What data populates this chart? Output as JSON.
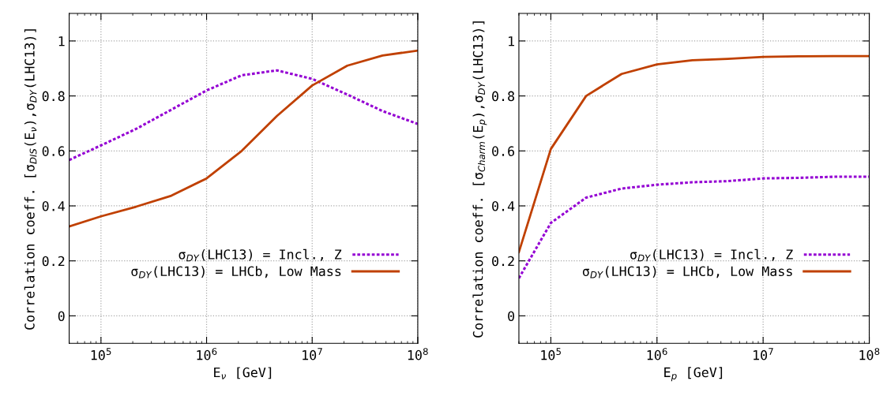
{
  "chart_data": [
    {
      "type": "line",
      "xlabel": "E$_{ν}$ [GeV]",
      "ylabel": "Correlation coeff. [σ$_{DIS}$(E$_{ν}$),σ$_{DY}$(LHC13)]",
      "log": "x",
      "grid": true,
      "legend": "bottom right",
      "xlim": [
        50000,
        100000000
      ],
      "ylim": [
        -0.1,
        1.1
      ],
      "xticks": [
        {
          "value": 100000,
          "label": "10$^{5}$"
        },
        {
          "value": 1000000,
          "label": "10$^{6}$"
        },
        {
          "value": 10000000,
          "label": "10$^{7}$"
        },
        {
          "value": 100000000,
          "label": "10$^{8}$"
        }
      ],
      "yticks": [
        0,
        0.2,
        0.4,
        0.6,
        0.8,
        1
      ],
      "x": [
        50000,
        100000,
        215000,
        464000,
        1000000,
        2150000,
        4640000,
        10000000,
        21500000,
        46400000,
        100000000
      ],
      "series": [
        {
          "name": "σ$_{DY}$(LHC13) = Incl., Z",
          "color": "#9400d3",
          "line_style": "dotted",
          "values": [
            0.567,
            0.62,
            0.68,
            0.75,
            0.82,
            0.875,
            0.893,
            0.862,
            0.805,
            0.745,
            0.698
          ]
        },
        {
          "name": "σ$_{DY}$(LHC13) = LHCb, Low Mass",
          "color": "#c04000",
          "line_style": "solid",
          "values": [
            0.325,
            0.362,
            0.397,
            0.437,
            0.5,
            0.6,
            0.727,
            0.838,
            0.91,
            0.947,
            0.965
          ]
        }
      ]
    },
    {
      "type": "line",
      "xlabel": "E$_{p}$ [GeV]",
      "ylabel": "Correlation coeff. [σ$_{Charm}$(E$_{p}$),σ$_{DY}$(LHC13)]",
      "log": "x",
      "grid": true,
      "legend": "bottom right",
      "xlim": [
        50000,
        100000000
      ],
      "ylim": [
        -0.1,
        1.1
      ],
      "xticks": [
        {
          "value": 100000,
          "label": "10$^{5}$"
        },
        {
          "value": 1000000,
          "label": "10$^{6}$"
        },
        {
          "value": 10000000,
          "label": "10$^{7}$"
        },
        {
          "value": 100000000,
          "label": "10$^{8}$"
        }
      ],
      "yticks": [
        0,
        0.2,
        0.4,
        0.6,
        0.8,
        1
      ],
      "x": [
        50000,
        100000,
        215000,
        464000,
        1000000,
        2150000,
        4640000,
        10000000,
        21500000,
        46400000,
        100000000
      ],
      "series": [
        {
          "name": "σ$_{DY}$(LHC13) = Incl., Z",
          "color": "#9400d3",
          "line_style": "dotted",
          "values": [
            0.137,
            0.338,
            0.43,
            0.463,
            0.477,
            0.486,
            0.49,
            0.5,
            0.502,
            0.506,
            0.506
          ]
        },
        {
          "name": "σ$_{DY}$(LHC13) = LHCb, Low Mass",
          "color": "#c04000",
          "line_style": "solid",
          "values": [
            0.232,
            0.607,
            0.8,
            0.88,
            0.915,
            0.93,
            0.935,
            0.942,
            0.944,
            0.945,
            0.945
          ]
        }
      ]
    }
  ]
}
